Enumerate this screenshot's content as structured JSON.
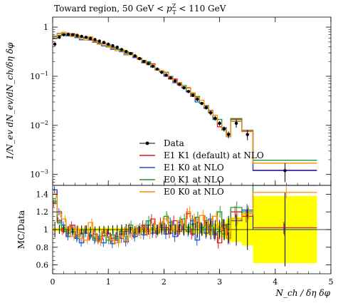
{
  "chart_data": {
    "type": "line",
    "title": "Toward region, 50 GeV < p_T^Z < 110 GeV",
    "xlabel": "N_ch / δη δφ",
    "ylabel": "1/N_ev dN_ev/dN_ch/δη δφ",
    "ratio_ylabel": "MC/Data",
    "xlim": [
      0,
      5
    ],
    "ylim": [
      0.0006,
      1.6
    ],
    "yscale": "log",
    "ratio_ylim": [
      0.5,
      1.5
    ],
    "x_ticks": [
      "0",
      "1",
      "2",
      "3",
      "4",
      "5"
    ],
    "y_ticks": [
      {
        "pfx": "10",
        "exp": "−3",
        "value": 0.001
      },
      {
        "pfx": "10",
        "exp": "−2",
        "value": 0.01
      },
      {
        "pfx": "10",
        "exp": "−1",
        "value": 0.1
      },
      {
        "pfx": "1",
        "exp": "",
        "value": 1
      }
    ],
    "ratio_y_ticks": [
      "0.6",
      "0.8",
      "1",
      "1.2",
      "1.4"
    ],
    "ratio_y_tick_values": [
      0.6,
      0.8,
      1.0,
      1.2,
      1.4
    ],
    "bin_edges": [
      0.0,
      0.08,
      0.16,
      0.24,
      0.32,
      0.4,
      0.48,
      0.56,
      0.64,
      0.72,
      0.8,
      0.88,
      0.96,
      1.04,
      1.12,
      1.2,
      1.28,
      1.36,
      1.44,
      1.52,
      1.6,
      1.68,
      1.76,
      1.84,
      1.92,
      2.0,
      2.08,
      2.16,
      2.24,
      2.32,
      2.4,
      2.48,
      2.56,
      2.64,
      2.72,
      2.8,
      2.88,
      2.96,
      3.04,
      3.12,
      3.2,
      3.4,
      3.6,
      4.75
    ],
    "data": {
      "name": "Data",
      "values": [
        0.45,
        0.62,
        0.7,
        0.72,
        0.7,
        0.68,
        0.65,
        0.62,
        0.59,
        0.56,
        0.52,
        0.49,
        0.45,
        0.42,
        0.39,
        0.35,
        0.32,
        0.29,
        0.26,
        0.23,
        0.2,
        0.18,
        0.16,
        0.14,
        0.12,
        0.105,
        0.092,
        0.08,
        0.068,
        0.058,
        0.049,
        0.041,
        0.034,
        0.028,
        0.023,
        0.018,
        0.014,
        0.011,
        0.0085,
        0.0065,
        0.011,
        0.0065,
        0.0012
      ],
      "errors": [
        0.04,
        0.03,
        0.03,
        0.03,
        0.03,
        0.03,
        0.03,
        0.03,
        0.02,
        0.02,
        0.02,
        0.02,
        0.02,
        0.02,
        0.02,
        0.02,
        0.02,
        0.01,
        0.01,
        0.01,
        0.01,
        0.01,
        0.01,
        0.008,
        0.007,
        0.006,
        0.005,
        0.005,
        0.004,
        0.004,
        0.003,
        0.003,
        0.003,
        0.002,
        0.002,
        0.002,
        0.0015,
        0.0012,
        0.001,
        0.001,
        0.002,
        0.0015,
        0.0005
      ]
    },
    "series": [
      {
        "name": "E1 K1 (default) at NLO",
        "color": "#e41a1c",
        "ratio": [
          1.3,
          1.1,
          0.98,
          0.96,
          1.05,
          0.94,
          0.96,
          1.0,
          0.92,
          0.95,
          0.88,
          0.93,
          0.96,
          0.9,
          0.92,
          0.95,
          0.98,
          1.02,
          0.95,
          1.0,
          1.05,
          0.98,
          1.12,
          0.96,
          1.08,
          1.02,
          0.96,
          1.1,
          0.98,
          1.05,
          1.18,
          0.95,
          1.08,
          1.02,
          1.1,
          1.0,
          0.96,
          0.85,
          1.05,
          1.0,
          1.2,
          1.15,
          1.02
        ]
      },
      {
        "name": "E1 K0 at NLO",
        "color": "#1f4fd8",
        "ratio": [
          1.45,
          1.2,
          1.05,
          0.92,
          0.97,
          0.9,
          0.85,
          0.96,
          0.93,
          0.88,
          0.9,
          0.85,
          0.95,
          0.84,
          0.92,
          0.9,
          0.86,
          0.96,
          0.92,
          0.98,
          0.94,
          1.05,
          0.96,
          1.0,
          1.02,
          0.95,
          1.08,
          0.92,
          1.05,
          1.0,
          0.98,
          1.1,
          0.88,
          1.02,
          0.96,
          1.12,
          0.94,
          0.98,
          1.05,
          0.9,
          1.1,
          1.22,
          1.0
        ]
      },
      {
        "name": "E0 K1 at NLO",
        "color": "#1a9a2a",
        "ratio": [
          1.32,
          1.08,
          1.02,
          0.96,
          0.98,
          0.92,
          0.95,
          1.0,
          0.94,
          0.9,
          0.92,
          0.96,
          0.88,
          0.94,
          0.9,
          0.98,
          0.92,
          1.05,
          0.96,
          1.02,
          0.98,
          1.1,
          1.02,
          0.98,
          1.04,
          1.15,
          1.05,
          1.0,
          1.08,
          1.12,
          1.02,
          1.06,
          1.14,
          1.0,
          1.08,
          1.04,
          1.0,
          1.2,
          0.95,
          1.06,
          1.25,
          1.2,
          1.62
        ]
      },
      {
        "name": "E0 K0 at NLO",
        "color": "#ff8c00",
        "ratio": [
          1.4,
          1.18,
          1.12,
          1.02,
          0.92,
          1.0,
          0.9,
          0.88,
          1.08,
          0.92,
          0.86,
          0.98,
          0.92,
          0.88,
          0.85,
          0.93,
          0.88,
          0.94,
          1.0,
          0.95,
          1.02,
          0.95,
          1.05,
          1.0,
          1.08,
          1.12,
          1.04,
          1.0,
          1.1,
          1.05,
          1.2,
          1.12,
          1.08,
          1.16,
          1.05,
          1.1,
          1.15,
          1.02,
          1.0,
          0.9,
          1.12,
          1.18,
          1.42
        ]
      }
    ],
    "uncertainty_band": {
      "color": "#ffff00",
      "halfwidth": [
        0.02,
        0.02,
        0.02,
        0.02,
        0.02,
        0.02,
        0.02,
        0.02,
        0.02,
        0.02,
        0.02,
        0.02,
        0.02,
        0.02,
        0.02,
        0.02,
        0.02,
        0.02,
        0.02,
        0.02,
        0.02,
        0.02,
        0.02,
        0.02,
        0.03,
        0.03,
        0.03,
        0.03,
        0.03,
        0.04,
        0.04,
        0.04,
        0.05,
        0.05,
        0.06,
        0.06,
        0.07,
        0.08,
        0.09,
        0.12,
        0.14,
        0.18,
        0.38
      ]
    },
    "legend": {
      "placement": "bottom-center"
    },
    "grid": false
  }
}
